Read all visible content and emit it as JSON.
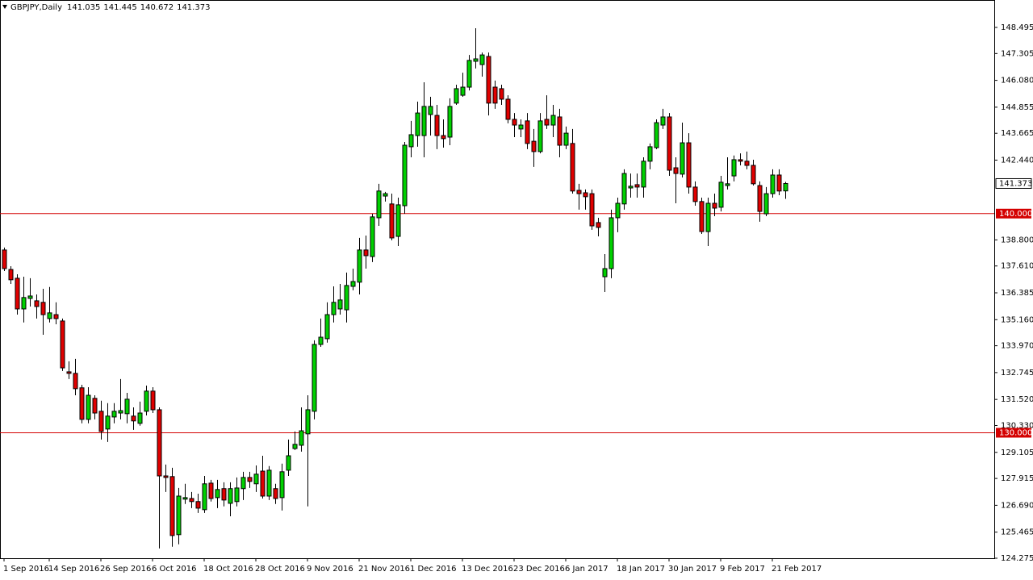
{
  "chart_data": {
    "type": "candlestick",
    "title": "GBPJPY,Daily",
    "categories": [
      "1 Sep 2016",
      null,
      null,
      null,
      null,
      null,
      null,
      "14 Sep 2016",
      null,
      null,
      null,
      null,
      null,
      null,
      null,
      "26 Sep 2016",
      null,
      null,
      null,
      null,
      null,
      null,
      null,
      "6 Oct 2016",
      null,
      null,
      null,
      null,
      null,
      null,
      null,
      "18 Oct 2016",
      null,
      null,
      null,
      null,
      null,
      null,
      null,
      "28 Oct 2016",
      null,
      null,
      null,
      null,
      null,
      null,
      null,
      "9 Nov 2016",
      null,
      null,
      null,
      null,
      null,
      null,
      null,
      "21 Nov 2016",
      null,
      null,
      null,
      null,
      null,
      null,
      null,
      "1 Dec 2016",
      null,
      null,
      null,
      null,
      null,
      null,
      null,
      "13 Dec 2016",
      null,
      null,
      null,
      null,
      null,
      null,
      null,
      "23 Dec 2016",
      null,
      null,
      null,
      null,
      null,
      null,
      null,
      "6 Jan 2017",
      null,
      null,
      null,
      null,
      null,
      null,
      null,
      "18 Jan 2017",
      null,
      null,
      null,
      null,
      null,
      null,
      null,
      "30 Jan 2017",
      null,
      null,
      null,
      null,
      null,
      null,
      null,
      "9 Feb 2017",
      null,
      null,
      null,
      null,
      null,
      null,
      null,
      "21 Feb 2017",
      null,
      null
    ],
    "open": [
      138.34,
      137.45,
      137.05,
      135.65,
      136.13,
      136.02,
      135.95,
      135.21,
      135.39,
      135.1,
      132.78,
      132.71,
      132.05,
      130.61,
      131.57,
      130.98,
      130.17,
      130.72,
      130.9,
      130.87,
      130.76,
      130.43,
      130.98,
      131.9,
      131.05,
      128.03,
      128.0,
      125.35,
      126.97,
      127.0,
      126.86,
      126.49,
      127.7,
      127.04,
      127.45,
      126.78,
      126.86,
      127.45,
      127.96,
      127.67,
      128.25,
      127.11,
      127.45,
      127.04,
      128.29,
      129.28,
      129.43,
      129.95,
      130.98,
      134.03,
      134.29,
      135.39,
      135.65,
      135.61,
      136.68,
      136.87,
      138.34,
      138.04,
      139.81,
      140.8,
      140.44,
      138.96,
      140.36,
      143.05,
      143.56,
      143.56,
      144.52,
      144.48,
      143.56,
      143.49,
      145.04,
      145.4,
      145.77,
      146.95,
      146.8,
      147.17,
      145.77,
      145.7,
      145.22,
      144.3,
      143.86,
      144.23,
      143.3,
      142.83,
      144.3,
      144.04,
      144.41,
      143.12,
      143.2,
      141.06,
      140.95,
      140.91,
      139.59,
      137.12,
      137.49,
      139.81,
      140.44,
      141.17,
      141.32,
      141.21,
      142.39,
      143.01,
      144.04,
      144.41,
      142.09,
      141.8,
      143.23,
      141.21,
      140.55,
      139.18,
      140.47,
      140.29,
      141.28,
      141.72,
      142.46,
      142.39,
      142.2,
      141.28,
      139.99,
      140.91,
      141.76,
      141.035
    ],
    "high": [
      138.45,
      137.6,
      137.23,
      137.12,
      137.05,
      136.31,
      136.57,
      136.65,
      135.95,
      135.21,
      133.26,
      133.37,
      132.19,
      132.08,
      131.71,
      131.46,
      131.35,
      131.35,
      132.45,
      131.82,
      131.16,
      131.42,
      132.15,
      132.08,
      131.16,
      128.55,
      128.4,
      127.48,
      127.67,
      127.3,
      127.22,
      128.03,
      127.85,
      127.85,
      127.74,
      127.74,
      127.96,
      128.22,
      128.22,
      128.51,
      128.95,
      128.48,
      127.67,
      128.59,
      129.69,
      130.06,
      131.16,
      131.71,
      134.22,
      135.21,
      135.95,
      136.68,
      136.79,
      137.31,
      137.49,
      138.89,
      139.0,
      139.99,
      141.36,
      140.99,
      140.91,
      140.73,
      143.27,
      144.23,
      145.11,
      145.99,
      145.33,
      144.96,
      144.3,
      145.26,
      145.88,
      146.43,
      147.24,
      148.46,
      147.35,
      147.35,
      146.07,
      145.88,
      145.4,
      144.59,
      144.3,
      144.59,
      143.86,
      144.59,
      145.4,
      144.96,
      144.78,
      143.97,
      143.86,
      141.36,
      141.1,
      141.1,
      139.81,
      138.15,
      140.18,
      140.73,
      142.02,
      141.83,
      141.83,
      142.57,
      143.2,
      144.3,
      144.78,
      144.59,
      142.57,
      144.15,
      143.67,
      141.47,
      140.73,
      140.73,
      140.91,
      141.72,
      142.57,
      142.65,
      142.75,
      142.83,
      142.46,
      141.47,
      141.21,
      142.02,
      142.02,
      141.445
    ],
    "low": [
      137.38,
      136.79,
      135.39,
      135.03,
      135.76,
      135.21,
      134.47,
      135.03,
      134.95,
      132.82,
      132.45,
      131.71,
      130.43,
      130.43,
      130.61,
      129.69,
      129.58,
      130.43,
      130.61,
      130.43,
      130.13,
      130.32,
      130.79,
      130.9,
      124.72,
      127.3,
      124.8,
      124.91,
      126.75,
      126.56,
      126.34,
      126.34,
      126.86,
      126.56,
      126.64,
      126.19,
      126.64,
      126.93,
      127.48,
      127.3,
      127.0,
      126.93,
      126.75,
      126.45,
      128.03,
      129.21,
      129.14,
      126.64,
      130.61,
      133.92,
      134.11,
      135.03,
      135.39,
      135.03,
      136.5,
      136.31,
      137.49,
      137.79,
      139.44,
      140.55,
      138.78,
      138.52,
      139.99,
      142.57,
      143.05,
      142.57,
      143.56,
      142.94,
      143.01,
      143.12,
      144.96,
      145.33,
      145.62,
      146.62,
      146.25,
      144.48,
      144.78,
      144.96,
      144.12,
      143.49,
      143.49,
      142.94,
      142.13,
      142.75,
      143.86,
      143.49,
      142.57,
      142.94,
      140.91,
      140.18,
      140.18,
      139.26,
      138.96,
      136.42,
      137.05,
      139.15,
      140.18,
      140.73,
      140.73,
      140.73,
      142.02,
      142.94,
      143.86,
      141.72,
      140.47,
      141.65,
      140.91,
      140.36,
      139.07,
      138.52,
      139.88,
      140.1,
      141.1,
      141.47,
      142.2,
      142.02,
      141.28,
      139.63,
      139.88,
      140.73,
      140.84,
      140.672
    ],
    "close": [
      137.49,
      136.98,
      135.65,
      136.17,
      136.24,
      135.76,
      135.39,
      135.47,
      135.21,
      132.96,
      132.71,
      132.01,
      130.61,
      131.71,
      130.9,
      130.06,
      130.76,
      130.98,
      131.01,
      131.53,
      130.54,
      130.9,
      131.9,
      131.05,
      128.03,
      127.96,
      125.31,
      127.11,
      127.04,
      126.86,
      126.56,
      127.67,
      127.0,
      127.41,
      126.93,
      127.45,
      127.48,
      127.96,
      127.78,
      128.11,
      127.11,
      128.29,
      127.0,
      128.22,
      128.95,
      129.47,
      130.09,
      131.05,
      134.03,
      134.36,
      135.39,
      135.95,
      136.06,
      136.72,
      136.9,
      138.34,
      138.08,
      139.85,
      141.03,
      140.91,
      138.89,
      140.4,
      143.12,
      143.6,
      144.59,
      144.89,
      144.89,
      143.56,
      143.42,
      144.89,
      145.7,
      145.77,
      146.99,
      147.06,
      147.24,
      145.04,
      145.04,
      145.22,
      144.3,
      144.04,
      144.04,
      143.2,
      142.83,
      144.23,
      144.04,
      144.48,
      143.12,
      143.67,
      141.03,
      140.91,
      140.77,
      139.44,
      139.37,
      137.49,
      139.81,
      140.47,
      141.83,
      141.25,
      141.21,
      142.39,
      143.05,
      144.15,
      144.41,
      141.98,
      141.83,
      143.23,
      141.21,
      140.55,
      139.18,
      140.47,
      140.25,
      141.43,
      141.36,
      142.46,
      142.39,
      142.2,
      141.36,
      140.1,
      140.91,
      141.76,
      141.03,
      141.373
    ],
    "up_color": "#00d000",
    "down_color": "#e00000",
    "ylim": [
      124.275,
      149.746
    ],
    "yticks": [
      148.495,
      147.305,
      {
        "value": 146.08,
        "label": "146.080"
      },
      144.855,
      143.665,
      {
        "value": 142.44,
        "label": "142.440"
      },
      {
        "value": 138.8,
        "label": "138.800"
      },
      {
        "value": 137.61,
        "label": "137.610"
      },
      136.385,
      {
        "value": 135.16,
        "label": "135.160"
      },
      {
        "value": 133.97,
        "label": "133.970"
      },
      132.745,
      {
        "value": 131.52,
        "label": "131.520"
      },
      {
        "value": 130.33,
        "label": "130.330"
      },
      129.105,
      127.915,
      {
        "value": 126.69,
        "label": "126.690"
      },
      125.465,
      124.275
    ],
    "hlines": [
      {
        "value": 140,
        "label": "140.000"
      },
      {
        "value": 130,
        "label": "130.000"
      }
    ],
    "hline_color": "#d40000",
    "grid": false
  }
}
